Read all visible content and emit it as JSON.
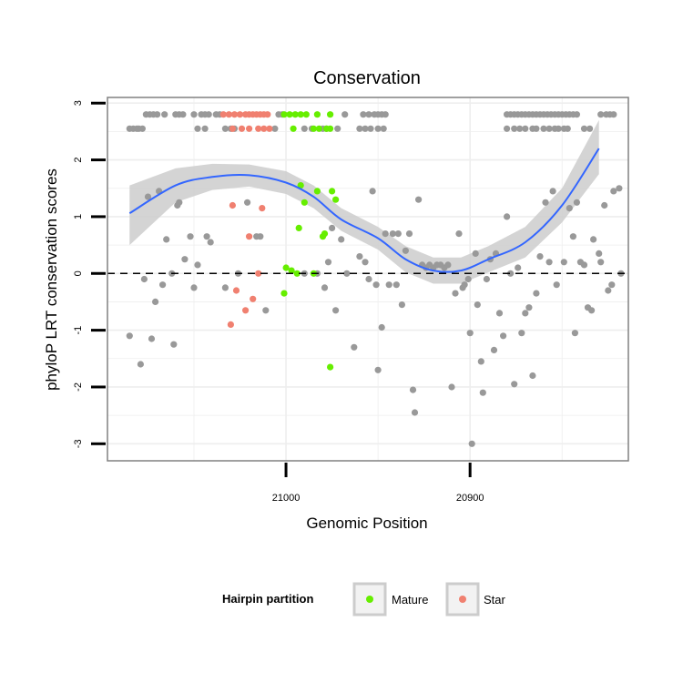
{
  "chart_data": {
    "type": "scatter",
    "title": "Conservation",
    "xlabel": "Genomic Position",
    "ylabel": "phyloP LRT conservation scores",
    "x_reversed": true,
    "xlim": [
      21097,
      20814
    ],
    "ylim": [
      -3.3,
      3.1
    ],
    "x_ticks": [
      21000,
      20900
    ],
    "y_ticks": [
      -3,
      -2,
      -1,
      0,
      1,
      2,
      3
    ],
    "reference_line": {
      "y": 0,
      "style": "dashed",
      "color": "#000000"
    },
    "grid": true,
    "legend": {
      "title": "Hairpin partition",
      "position": "bottom",
      "entries": [
        {
          "label": "Mature",
          "color": "#66ee00"
        },
        {
          "label": "Star",
          "color": "#f08070"
        }
      ]
    },
    "colors": {
      "background": "#ffffff",
      "point_default": "#999999",
      "mature": "#66ee00",
      "star": "#f08070",
      "smooth_line": "#3366ff",
      "smooth_band": "#cccccc",
      "panel_border": "#808080",
      "gridline": "#eeeeee"
    },
    "smooth": {
      "x": [
        21085,
        21060,
        21040,
        21020,
        21000,
        20985,
        20970,
        20950,
        20935,
        20920,
        20905,
        20890,
        20870,
        20850,
        20830
      ],
      "y": [
        1.06,
        1.55,
        1.7,
        1.73,
        1.6,
        1.35,
        0.95,
        0.62,
        0.25,
        0.05,
        0.05,
        0.25,
        0.55,
        1.2,
        2.2
      ],
      "upper": [
        1.55,
        1.85,
        1.93,
        1.92,
        1.8,
        1.55,
        1.15,
        0.82,
        0.48,
        0.28,
        0.28,
        0.48,
        0.82,
        1.5,
        2.7
      ],
      "lower": [
        0.5,
        1.25,
        1.47,
        1.53,
        1.4,
        1.15,
        0.75,
        0.42,
        0.02,
        -0.18,
        -0.18,
        0.02,
        0.28,
        0.9,
        1.75
      ]
    },
    "series": [
      {
        "name": "",
        "values": [
          [
            21085,
            2.55
          ],
          [
            21083,
            2.55
          ],
          [
            21081,
            2.55
          ],
          [
            21080,
            2.55
          ],
          [
            21078,
            2.55
          ],
          [
            21076,
            2.8
          ],
          [
            21074,
            2.8
          ],
          [
            21072,
            2.8
          ],
          [
            21070,
            2.8
          ],
          [
            21066,
            2.8
          ],
          [
            21060,
            2.8
          ],
          [
            21058,
            2.8
          ],
          [
            21056,
            2.8
          ],
          [
            21050,
            2.8
          ],
          [
            21046,
            2.8
          ],
          [
            21044,
            2.8
          ],
          [
            21042,
            2.8
          ],
          [
            21038,
            2.8
          ],
          [
            21036,
            2.8
          ],
          [
            21048,
            2.55
          ],
          [
            21044,
            2.55
          ],
          [
            21033,
            2.55
          ],
          [
            21030,
            2.55
          ],
          [
            21028,
            2.55
          ],
          [
            21006,
            2.55
          ],
          [
            21002,
            2.8
          ],
          [
            21004,
            2.8
          ],
          [
            20968,
            2.8
          ],
          [
            20990,
            2.55
          ],
          [
            20986,
            2.55
          ],
          [
            20980,
            2.55
          ],
          [
            20978,
            2.55
          ],
          [
            20972,
            2.55
          ],
          [
            20960,
            2.55
          ],
          [
            20957,
            2.55
          ],
          [
            20954,
            2.55
          ],
          [
            20950,
            2.55
          ],
          [
            20947,
            2.55
          ],
          [
            20958,
            2.8
          ],
          [
            20955,
            2.8
          ],
          [
            20952,
            2.8
          ],
          [
            20950,
            2.8
          ],
          [
            20948,
            2.8
          ],
          [
            20946,
            2.8
          ],
          [
            20880,
            2.8
          ],
          [
            20878,
            2.8
          ],
          [
            20876,
            2.8
          ],
          [
            20874,
            2.8
          ],
          [
            20872,
            2.8
          ],
          [
            20870,
            2.8
          ],
          [
            20868,
            2.8
          ],
          [
            20866,
            2.8
          ],
          [
            20864,
            2.8
          ],
          [
            20862,
            2.8
          ],
          [
            20860,
            2.8
          ],
          [
            20858,
            2.8
          ],
          [
            20856,
            2.8
          ],
          [
            20854,
            2.8
          ],
          [
            20852,
            2.8
          ],
          [
            20850,
            2.8
          ],
          [
            20848,
            2.8
          ],
          [
            20846,
            2.8
          ],
          [
            20844,
            2.8
          ],
          [
            20842,
            2.8
          ],
          [
            20829,
            2.8
          ],
          [
            20826,
            2.8
          ],
          [
            20824,
            2.8
          ],
          [
            20822,
            2.8
          ],
          [
            20880,
            2.55
          ],
          [
            20876,
            2.55
          ],
          [
            20873,
            2.55
          ],
          [
            20870,
            2.55
          ],
          [
            20866,
            2.55
          ],
          [
            20864,
            2.55
          ],
          [
            20860,
            2.55
          ],
          [
            20857,
            2.55
          ],
          [
            20854,
            2.55
          ],
          [
            20852,
            2.55
          ],
          [
            20849,
            2.55
          ],
          [
            20847,
            2.55
          ],
          [
            20838,
            2.55
          ],
          [
            20835,
            2.55
          ],
          [
            21085,
            -1.1
          ],
          [
            21079,
            -1.6
          ],
          [
            21077,
            -0.1
          ],
          [
            21075,
            1.35
          ],
          [
            21073,
            -1.15
          ],
          [
            21071,
            -0.5
          ],
          [
            21069,
            1.45
          ],
          [
            21067,
            -0.2
          ],
          [
            21065,
            0.6
          ],
          [
            21062,
            0.0
          ],
          [
            21061,
            -1.25
          ],
          [
            21059,
            1.2
          ],
          [
            21058,
            1.25
          ],
          [
            21055,
            0.25
          ],
          [
            21052,
            0.65
          ],
          [
            21050,
            -0.25
          ],
          [
            21048,
            0.15
          ],
          [
            21043,
            0.65
          ],
          [
            21041,
            0.55
          ],
          [
            21033,
            -0.25
          ],
          [
            21026,
            0.0
          ],
          [
            21021,
            1.25
          ],
          [
            21016,
            0.65
          ],
          [
            21014,
            0.65
          ],
          [
            21011,
            -0.65
          ],
          [
            20990,
            0.0
          ],
          [
            20983,
            0.0
          ],
          [
            20979,
            -0.25
          ],
          [
            20977,
            0.2
          ],
          [
            20975,
            0.8
          ],
          [
            20973,
            -0.65
          ],
          [
            20970,
            0.6
          ],
          [
            20967,
            0.0
          ],
          [
            20963,
            -1.3
          ],
          [
            20960,
            0.3
          ],
          [
            20957,
            0.2
          ],
          [
            20955,
            -0.1
          ],
          [
            20953,
            1.45
          ],
          [
            20951,
            -0.2
          ],
          [
            20950,
            -1.7
          ],
          [
            20948,
            -0.95
          ],
          [
            20946,
            0.7
          ],
          [
            20944,
            -0.2
          ],
          [
            20942,
            0.7
          ],
          [
            20940,
            -0.2
          ],
          [
            20939,
            0.7
          ],
          [
            20937,
            -0.55
          ],
          [
            20935,
            0.4
          ],
          [
            20933,
            0.7
          ],
          [
            20931,
            -2.05
          ],
          [
            20930,
            -2.45
          ],
          [
            20928,
            1.3
          ],
          [
            20926,
            0.15
          ],
          [
            20924,
            0.1
          ],
          [
            20922,
            0.15
          ],
          [
            20920,
            0.1
          ],
          [
            20918,
            0.15
          ],
          [
            20916,
            0.15
          ],
          [
            20914,
            0.1
          ],
          [
            20912,
            0.15
          ],
          [
            20910,
            -2.0
          ],
          [
            20908,
            -0.35
          ],
          [
            20906,
            0.7
          ],
          [
            20904,
            -0.25
          ],
          [
            20903,
            -0.2
          ],
          [
            20901,
            -0.1
          ],
          [
            20900,
            -1.05
          ],
          [
            20899,
            -3.0
          ],
          [
            20897,
            0.35
          ],
          [
            20896,
            -0.55
          ],
          [
            20894,
            -1.55
          ],
          [
            20893,
            -2.1
          ],
          [
            20891,
            -0.1
          ],
          [
            20889,
            0.25
          ],
          [
            20887,
            -1.35
          ],
          [
            20886,
            0.35
          ],
          [
            20884,
            -0.7
          ],
          [
            20882,
            -1.1
          ],
          [
            20880,
            1.0
          ],
          [
            20878,
            0.0
          ],
          [
            20876,
            -1.95
          ],
          [
            20874,
            0.1
          ],
          [
            20872,
            -1.05
          ],
          [
            20870,
            -0.7
          ],
          [
            20868,
            -0.6
          ],
          [
            20866,
            -1.8
          ],
          [
            20864,
            -0.35
          ],
          [
            20862,
            0.3
          ],
          [
            20859,
            1.25
          ],
          [
            20857,
            0.2
          ],
          [
            20855,
            1.45
          ],
          [
            20853,
            -0.2
          ],
          [
            20849,
            0.2
          ],
          [
            20846,
            1.15
          ],
          [
            20844,
            0.65
          ],
          [
            20843,
            -1.05
          ],
          [
            20842,
            1.25
          ],
          [
            20840,
            0.2
          ],
          [
            20838,
            0.15
          ],
          [
            20836,
            -0.6
          ],
          [
            20834,
            -0.65
          ],
          [
            20833,
            0.6
          ],
          [
            20830,
            0.35
          ],
          [
            20829,
            0.2
          ],
          [
            20827,
            1.2
          ],
          [
            20825,
            -0.3
          ],
          [
            20823,
            -0.2
          ],
          [
            20822,
            1.45
          ],
          [
            20819,
            1.5
          ],
          [
            20818,
            0.0
          ]
        ]
      },
      {
        "name": "Mature",
        "values": [
          [
            21001,
            2.8
          ],
          [
            20998,
            2.8
          ],
          [
            20995,
            2.8
          ],
          [
            20992,
            2.8
          ],
          [
            20989,
            2.8
          ],
          [
            20983,
            2.8
          ],
          [
            20976,
            2.8
          ],
          [
            20996,
            2.55
          ],
          [
            20985,
            2.55
          ],
          [
            20982,
            2.55
          ],
          [
            20978,
            2.55
          ],
          [
            20976,
            2.55
          ],
          [
            20992,
            1.55
          ],
          [
            20990,
            1.25
          ],
          [
            20983,
            1.45
          ],
          [
            20975,
            1.45
          ],
          [
            20973,
            1.3
          ],
          [
            20993,
            0.8
          ],
          [
            20980,
            0.65
          ],
          [
            20979,
            0.7
          ],
          [
            21000,
            0.1
          ],
          [
            20997,
            0.05
          ],
          [
            20994,
            0.0
          ],
          [
            20985,
            0.0
          ],
          [
            21001,
            -0.35
          ],
          [
            20976,
            -1.65
          ]
        ]
      },
      {
        "name": "Star",
        "values": [
          [
            21034,
            2.8
          ],
          [
            21031,
            2.8
          ],
          [
            21028,
            2.8
          ],
          [
            21025,
            2.8
          ],
          [
            21022,
            2.8
          ],
          [
            21020,
            2.8
          ],
          [
            21018,
            2.8
          ],
          [
            21016,
            2.8
          ],
          [
            21014,
            2.8
          ],
          [
            21012,
            2.8
          ],
          [
            21010,
            2.8
          ],
          [
            21029,
            2.55
          ],
          [
            21024,
            2.55
          ],
          [
            21020,
            2.55
          ],
          [
            21015,
            2.55
          ],
          [
            21012,
            2.55
          ],
          [
            21009,
            2.55
          ],
          [
            21029,
            1.2
          ],
          [
            21013,
            1.15
          ],
          [
            21020,
            0.65
          ],
          [
            21015,
            0.0
          ],
          [
            21027,
            -0.3
          ],
          [
            21018,
            -0.45
          ],
          [
            21022,
            -0.65
          ],
          [
            21030,
            -0.9
          ]
        ]
      }
    ]
  }
}
